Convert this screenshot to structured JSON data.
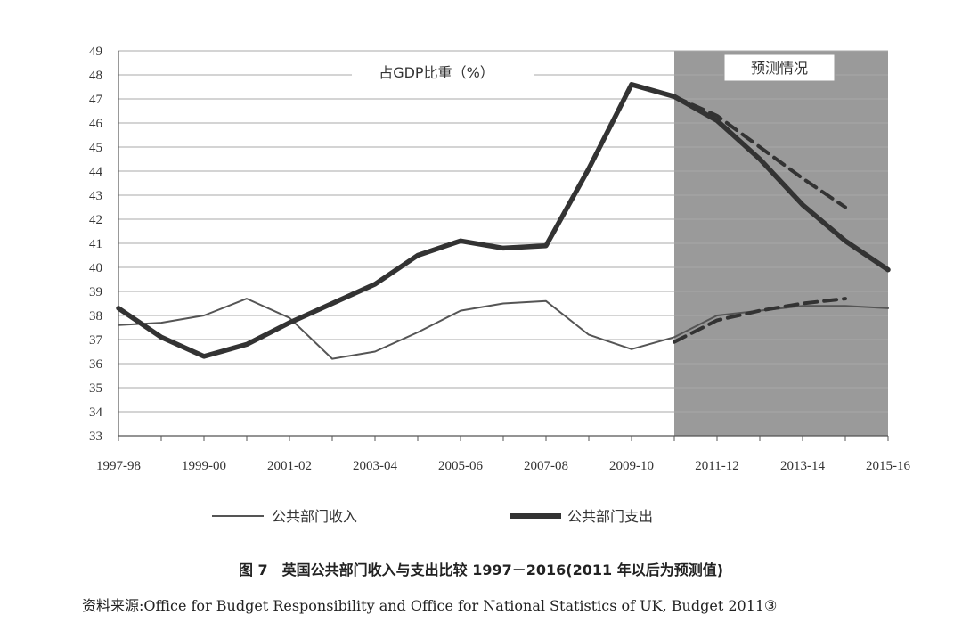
{
  "chart_data": {
    "type": "line",
    "categories": [
      "1997-98",
      "1998-99",
      "1999-00",
      "2000-01",
      "2001-02",
      "2002-03",
      "2003-04",
      "2004-05",
      "2005-06",
      "2006-07",
      "2007-08",
      "2008-09",
      "2009-10",
      "2010-11",
      "2011-12",
      "2012-13",
      "2013-14",
      "2014-15",
      "2015-16"
    ],
    "x_tick_labels": [
      "1997-98",
      "1999-00",
      "2001-02",
      "2003-04",
      "2005-06",
      "2007-08",
      "2009-10",
      "2011-12",
      "2013-14",
      "2015-16"
    ],
    "ylim": [
      33,
      49
    ],
    "y_ticks": [
      33,
      34,
      35,
      36,
      37,
      38,
      39,
      40,
      41,
      42,
      43,
      44,
      45,
      46,
      47,
      48,
      49
    ],
    "grid": true,
    "annotation": "占GDP比重（%）",
    "forecast_label": "预测情况",
    "forecast_start": "2010-11",
    "legend_position": "bottom",
    "series": [
      {
        "name": "公共部门收入",
        "style": "thin",
        "color": "#555555",
        "values": [
          37.6,
          37.7,
          38.0,
          38.7,
          37.9,
          36.2,
          36.5,
          37.3,
          38.2,
          38.5,
          38.6,
          37.2,
          36.6,
          37.1,
          38.0,
          38.2,
          38.4,
          38.4,
          38.3
        ]
      },
      {
        "name": "公共部门支出",
        "style": "thick",
        "color": "#333333",
        "values": [
          38.3,
          37.1,
          36.3,
          36.8,
          37.7,
          38.5,
          39.3,
          40.5,
          41.1,
          40.8,
          40.9,
          44.1,
          47.6,
          47.1,
          46.1,
          44.5,
          42.6,
          41.1,
          39.9
        ]
      },
      {
        "name": "",
        "style": "dashed",
        "color": "#333333",
        "x": [
          "2010-11",
          "2011-12",
          "2012-13",
          "2013-14",
          "2014-15"
        ],
        "values": [
          47.1,
          46.3,
          45.0,
          43.7,
          42.5
        ]
      },
      {
        "name": "",
        "style": "dashed",
        "color": "#333333",
        "x": [
          "2010-11",
          "2011-12",
          "2012-13",
          "2013-14",
          "2014-15"
        ],
        "values": [
          36.9,
          37.8,
          38.2,
          38.5,
          38.7
        ]
      }
    ]
  },
  "caption": "图 7　英国公共部门收入与支出比较 1997－2016(2011 年以后为预测值)",
  "source": "资料来源:Office for Budget Responsibility and Office for National Statistics of UK, Budget 2011③"
}
